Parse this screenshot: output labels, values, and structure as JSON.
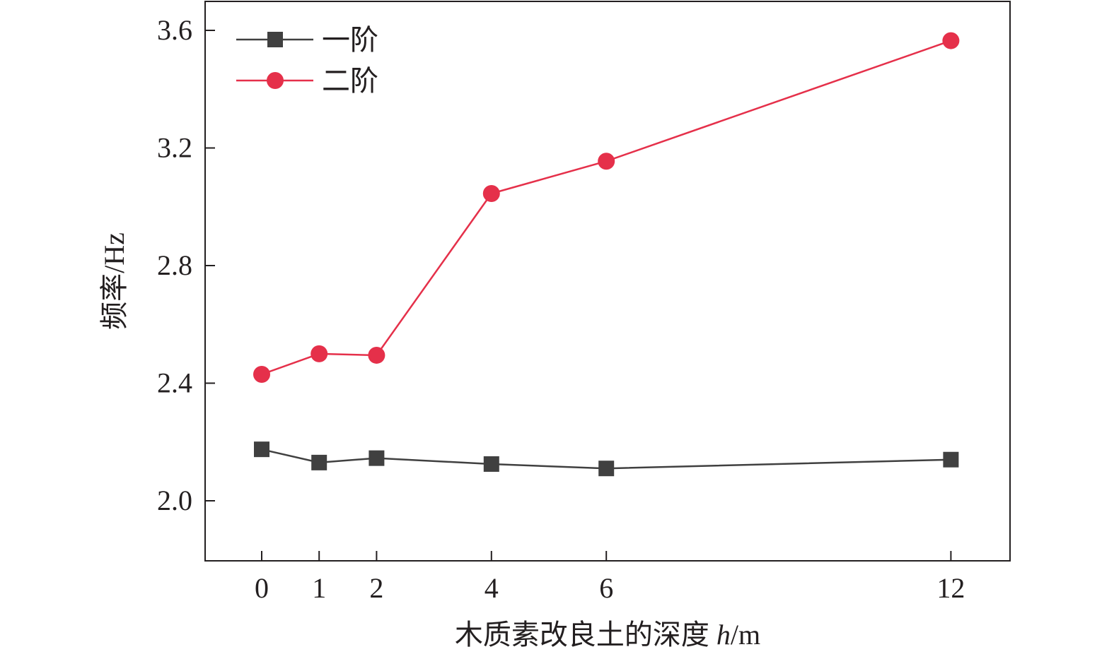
{
  "chart_data": {
    "type": "line",
    "title": "",
    "xlabel_main": "木质素改良土的深度 ",
    "xlabel_var": "h",
    "xlabel_unit": "/m",
    "ylabel": "频率/Hz",
    "x": [
      0,
      1,
      2,
      4,
      6,
      12
    ],
    "x_tick_labels": [
      "0",
      "1",
      "2",
      "4",
      "6",
      "12"
    ],
    "ylim": [
      1.8,
      3.7
    ],
    "y_ticks": [
      2.0,
      2.4,
      2.8,
      3.2,
      3.6
    ],
    "y_tick_labels": [
      "2.0",
      "2.4",
      "2.8",
      "3.2",
      "3.6"
    ],
    "grid": false,
    "legend_position": "top-left",
    "series": [
      {
        "name": "一阶",
        "color": "#404040",
        "marker": "square",
        "values": [
          2.175,
          2.13,
          2.145,
          2.125,
          2.11,
          2.14
        ]
      },
      {
        "name": "二阶",
        "color": "#e5304a",
        "marker": "circle",
        "values": [
          2.43,
          2.5,
          2.495,
          3.045,
          3.155,
          3.565
        ]
      }
    ]
  }
}
